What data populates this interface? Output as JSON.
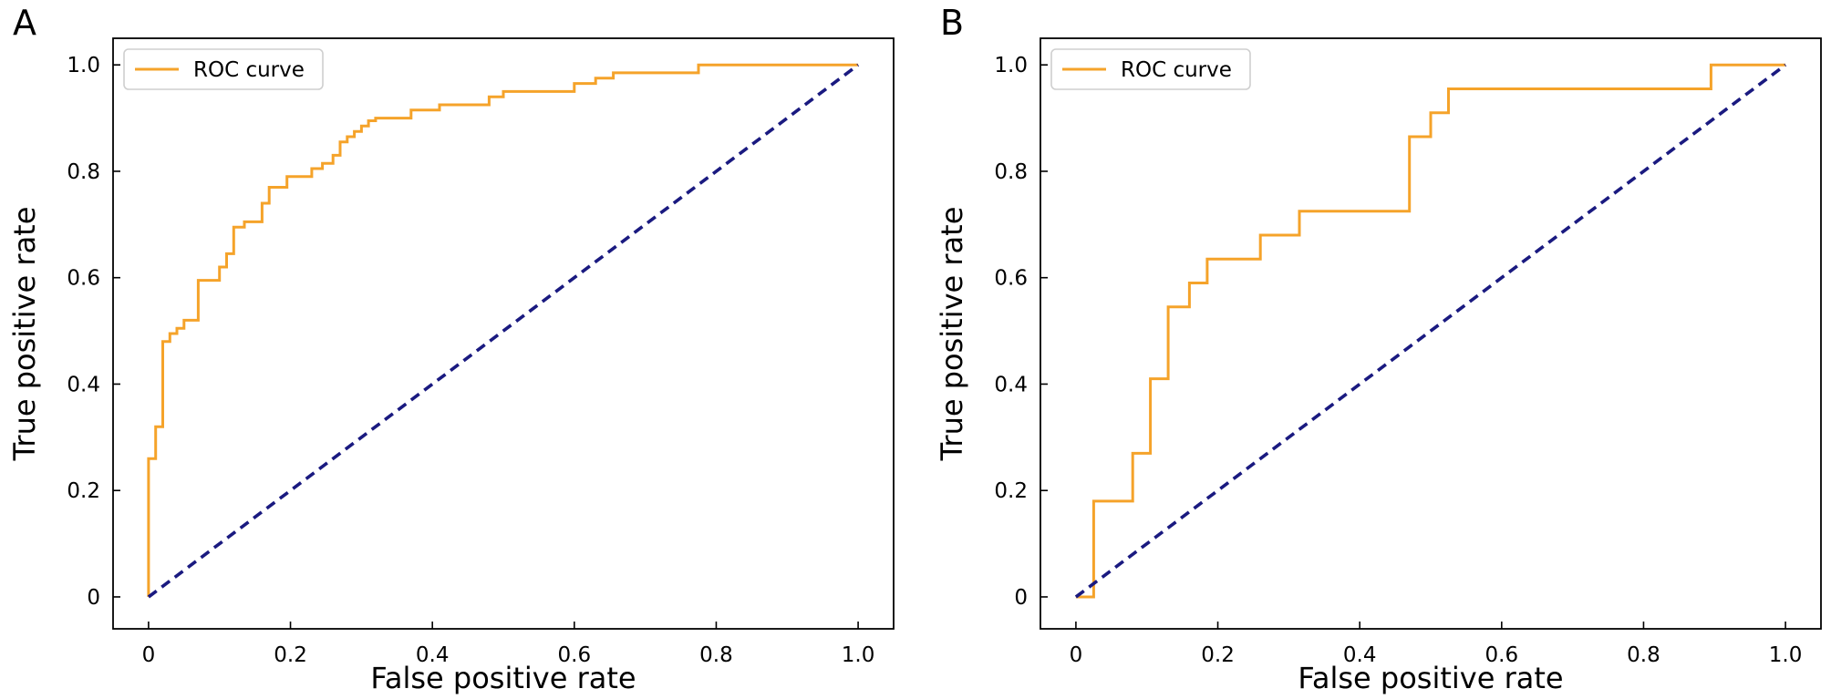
{
  "chart_data": [
    {
      "panel_label": "A",
      "type": "line",
      "xlabel": "False positive rate",
      "ylabel": "True positive rate",
      "xlim": [
        -0.05,
        1.05
      ],
      "ylim": [
        -0.06,
        1.05
      ],
      "xticks": [
        0,
        0.2,
        0.4,
        0.6,
        0.8,
        1.0
      ],
      "xtick_labels": [
        "0",
        "0.2",
        "0.4",
        "0.6",
        "0.8",
        "1.0"
      ],
      "yticks": [
        0,
        0.2,
        0.4,
        0.6,
        0.8,
        1.0
      ],
      "ytick_labels": [
        "0",
        "0.2",
        "0.4",
        "0.6",
        "0.8",
        "1.0"
      ],
      "grid": false,
      "legend_position": "top-left",
      "colors": {
        "roc": "#f5a32a",
        "diagonal": "#1a1a80"
      },
      "series": [
        {
          "name": "ROC curve",
          "style": "solid",
          "x": [
            0,
            0,
            0.01,
            0.01,
            0.02,
            0.02,
            0.03,
            0.03,
            0.04,
            0.04,
            0.05,
            0.05,
            0.07,
            0.07,
            0.1,
            0.1,
            0.11,
            0.11,
            0.12,
            0.12,
            0.135,
            0.135,
            0.16,
            0.16,
            0.17,
            0.17,
            0.195,
            0.195,
            0.23,
            0.23,
            0.245,
            0.245,
            0.26,
            0.26,
            0.27,
            0.27,
            0.28,
            0.28,
            0.29,
            0.29,
            0.3,
            0.3,
            0.31,
            0.31,
            0.32,
            0.32,
            0.37,
            0.37,
            0.41,
            0.41,
            0.48,
            0.48,
            0.5,
            0.5,
            0.6,
            0.6,
            0.63,
            0.63,
            0.655,
            0.655,
            0.775,
            0.775,
            1.0
          ],
          "y": [
            0,
            0.26,
            0.26,
            0.32,
            0.32,
            0.48,
            0.48,
            0.495,
            0.495,
            0.505,
            0.505,
            0.52,
            0.52,
            0.595,
            0.595,
            0.62,
            0.62,
            0.645,
            0.645,
            0.695,
            0.695,
            0.705,
            0.705,
            0.74,
            0.74,
            0.77,
            0.77,
            0.79,
            0.79,
            0.805,
            0.805,
            0.815,
            0.815,
            0.83,
            0.83,
            0.855,
            0.855,
            0.865,
            0.865,
            0.875,
            0.875,
            0.885,
            0.885,
            0.895,
            0.895,
            0.9,
            0.9,
            0.915,
            0.915,
            0.925,
            0.925,
            0.94,
            0.94,
            0.95,
            0.95,
            0.965,
            0.965,
            0.975,
            0.975,
            0.985,
            0.985,
            1.0,
            1.0
          ]
        },
        {
          "style": "dashed",
          "x": [
            0,
            1
          ],
          "y": [
            0,
            1
          ]
        }
      ]
    },
    {
      "panel_label": "B",
      "type": "line",
      "xlabel": "False positive rate",
      "ylabel": "True positive rate",
      "xlim": [
        -0.05,
        1.05
      ],
      "ylim": [
        -0.06,
        1.05
      ],
      "xticks": [
        0,
        0.2,
        0.4,
        0.6,
        0.8,
        1.0
      ],
      "xtick_labels": [
        "0",
        "0.2",
        "0.4",
        "0.6",
        "0.8",
        "1.0"
      ],
      "yticks": [
        0,
        0.2,
        0.4,
        0.6,
        0.8,
        1.0
      ],
      "ytick_labels": [
        "0",
        "0.2",
        "0.4",
        "0.6",
        "0.8",
        "1.0"
      ],
      "grid": false,
      "legend_position": "top-left",
      "colors": {
        "roc": "#f5a32a",
        "diagonal": "#1a1a80"
      },
      "series": [
        {
          "name": "ROC curve",
          "style": "solid",
          "x": [
            0,
            0.025,
            0.025,
            0.08,
            0.08,
            0.105,
            0.105,
            0.13,
            0.13,
            0.16,
            0.16,
            0.185,
            0.185,
            0.26,
            0.26,
            0.315,
            0.315,
            0.47,
            0.47,
            0.5,
            0.5,
            0.525,
            0.525,
            0.895,
            0.895,
            1.0
          ],
          "y": [
            0,
            0,
            0.18,
            0.18,
            0.27,
            0.27,
            0.41,
            0.41,
            0.545,
            0.545,
            0.59,
            0.59,
            0.635,
            0.635,
            0.68,
            0.68,
            0.725,
            0.725,
            0.865,
            0.865,
            0.91,
            0.91,
            0.955,
            0.955,
            1.0,
            1.0
          ]
        },
        {
          "style": "dashed",
          "x": [
            0,
            1
          ],
          "y": [
            0,
            1
          ]
        }
      ]
    }
  ]
}
